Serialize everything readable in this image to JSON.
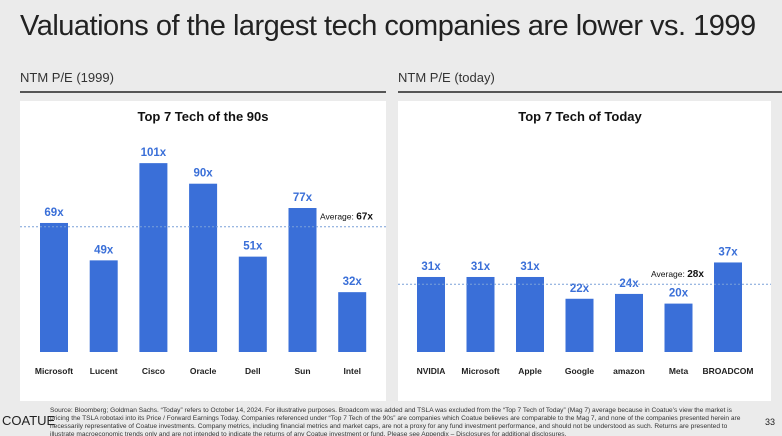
{
  "title": "Valuations of the largest tech companies are lower vs. 1999",
  "brand": "COATUE",
  "page_number": "33",
  "footer": "Source: Bloomberg; Goldman Sachs.  “Today” refers to October 14, 2024. For illustrative purposes.  Broadcom was added and TSLA was excluded from the “Top 7 Tech of Today” (Mag 7) average because in Coatue’s view the market is pricing the TSLA robotaxi into its Price / Forward Earnings Today. Companies referenced under “Top 7 Tech of the 90s” are companies which Coatue believes are comparable to the Mag 7, and none of the companies presented herein are necessarily representative of Coatue investments. Company metrics, including financial metrics and market caps, are not a proxy for any fund investment performance, and should not be understood as such. Returns are presented to illustrate macroeconomic trends only and are not intended to indicate the returns of any Coatue investment or fund. Please see Appendix – Disclosures for additional disclosures.",
  "colors": {
    "bar": "#3a6fd8",
    "label": "#3a6fd8",
    "avg_line": "#7aa0d8"
  },
  "chart_data": [
    {
      "type": "bar",
      "section_label": "NTM P/E (1999)",
      "title": "Top 7 Tech of the 90s",
      "categories": [
        "Microsoft",
        "Lucent Technologies",
        "Cisco",
        "Oracle",
        "Dell",
        "Sun Microsystems",
        "Intel"
      ],
      "values": [
        69,
        49,
        101,
        90,
        51,
        77,
        32
      ],
      "data_labels": [
        "69x",
        "49x",
        "101x",
        "90x",
        "51x",
        "77x",
        "32x"
      ],
      "average": 67,
      "average_label": "Average: ",
      "average_value_label": "67x",
      "ylim": [
        0,
        101
      ]
    },
    {
      "type": "bar",
      "section_label": "NTM P/E (today)",
      "title": "Top 7 Tech of Today",
      "categories": [
        "NVIDIA",
        "Microsoft",
        "Apple",
        "Google",
        "amazon",
        "Meta",
        "BROADCOM"
      ],
      "values": [
        31,
        31,
        31,
        22,
        24,
        20,
        37
      ],
      "data_labels": [
        "31x",
        "31x",
        "31x",
        "22x",
        "24x",
        "20x",
        "37x"
      ],
      "average": 28,
      "average_label": "Average: ",
      "average_value_label": "28x",
      "ylim": [
        0,
        37
      ]
    }
  ]
}
